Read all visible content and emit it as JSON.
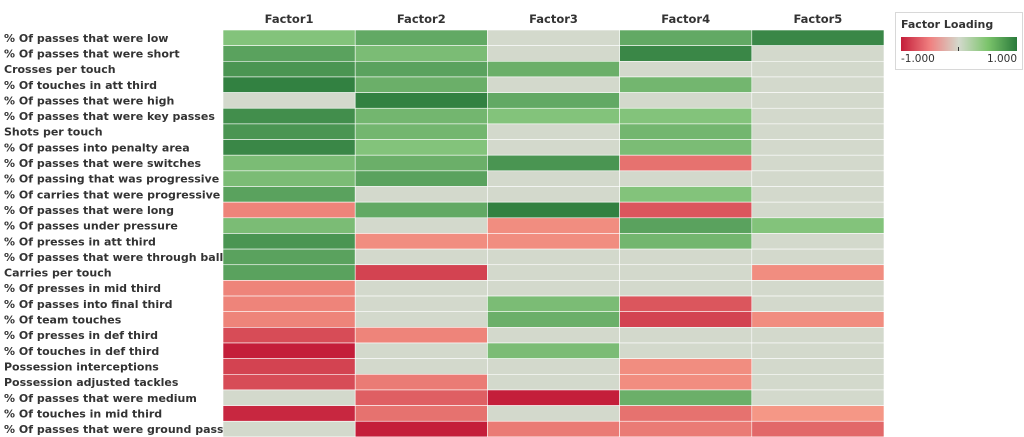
{
  "chart_data": {
    "type": "heatmap",
    "columns": [
      "Factor1",
      "Factor2",
      "Factor3",
      "Factor4",
      "Factor5"
    ],
    "rows": [
      "% Of passes that were low",
      "% Of passes that were short",
      "Crosses per touch",
      "% Of touches in att third",
      "% Of passes that were high",
      "% Of passes that were key passes",
      "Shots per touch",
      "% Of passes into penalty area",
      "% Of passes that were switches",
      "% Of passing that was progressive",
      "% Of carries that were progressive",
      "% Of passes that were long",
      "% Of passes under pressure",
      "% Of presses in att third",
      "% Of passes that were through balls",
      "Carries per touch",
      "% Of presses in mid third",
      "% Of passes into final third",
      "% Of team touches",
      "% Of presses in def third",
      "% Of touches in def third",
      "Possession interceptions",
      "Possession adjusted tackles",
      "% Of passes that were medium",
      "% Of touches in mid third",
      "% Of passes that were ground passes"
    ],
    "values": [
      [
        0.45,
        0.65,
        0.0,
        0.65,
        0.9
      ],
      [
        0.7,
        0.5,
        0.0,
        0.9,
        0.0
      ],
      [
        0.8,
        0.7,
        0.6,
        0.0,
        0.0
      ],
      [
        0.95,
        0.6,
        0.0,
        0.55,
        0.0
      ],
      [
        0.0,
        0.95,
        0.65,
        0.0,
        0.0
      ],
      [
        0.85,
        0.55,
        0.45,
        0.45,
        0.0
      ],
      [
        0.8,
        0.55,
        0.0,
        0.55,
        0.0
      ],
      [
        0.9,
        0.45,
        0.0,
        0.5,
        0.0
      ],
      [
        0.5,
        0.6,
        0.8,
        -0.55,
        0.0
      ],
      [
        0.5,
        0.7,
        0.0,
        0.0,
        0.0
      ],
      [
        0.7,
        0.0,
        0.0,
        0.45,
        0.0
      ],
      [
        -0.45,
        0.65,
        0.95,
        -0.7,
        0.0
      ],
      [
        0.5,
        0.0,
        -0.4,
        0.7,
        0.45
      ],
      [
        0.8,
        -0.4,
        -0.4,
        0.55,
        0.0
      ],
      [
        0.7,
        0.0,
        0.0,
        0.0,
        0.0
      ],
      [
        0.7,
        -0.8,
        0.0,
        0.0,
        -0.4
      ],
      [
        -0.45,
        0.0,
        0.0,
        0.0,
        0.0
      ],
      [
        -0.45,
        0.0,
        0.5,
        -0.7,
        0.0
      ],
      [
        -0.45,
        0.0,
        0.6,
        -0.8,
        -0.4
      ],
      [
        -0.75,
        -0.45,
        0.0,
        0.0,
        0.0
      ],
      [
        -1.0,
        0.0,
        0.5,
        0.0,
        0.0
      ],
      [
        -0.8,
        0.0,
        0.0,
        -0.4,
        0.0
      ],
      [
        -0.75,
        -0.5,
        0.0,
        -0.4,
        0.0
      ],
      [
        0.0,
        -0.65,
        -1.0,
        0.6,
        0.0
      ],
      [
        -0.95,
        -0.55,
        0.0,
        -0.55,
        -0.35
      ],
      [
        0.0,
        -1.0,
        -0.5,
        -0.5,
        -0.6
      ]
    ],
    "color_scale": {
      "min": -1.0,
      "max": 1.0,
      "min_color": "#c41e3a",
      "mid_color": "#d3d9cc",
      "max_color": "#2a7a3b"
    },
    "legend": {
      "title": "Factor Loading",
      "min_label": "-1.000",
      "max_label": "1.000",
      "placement": "top-right"
    }
  }
}
